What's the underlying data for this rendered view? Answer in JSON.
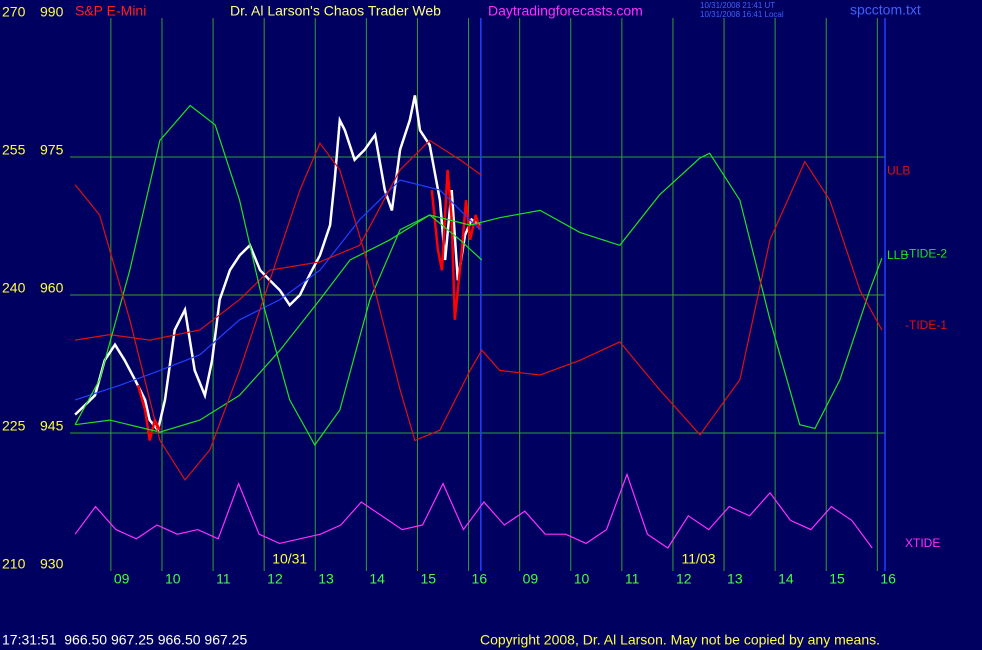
{
  "chart_data": {
    "type": "line",
    "title": "S&P E-Mini",
    "heading": "Dr. Al Larson's Chaos Trader Web",
    "site": "Daytradingforecasts.com",
    "timestamps": [
      "10/31/2008 21:41 UT",
      "10/31/2008 16:41 Local"
    ],
    "file": "spcctom.txt",
    "categories": [
      "09",
      "10",
      "11",
      "12",
      "13",
      "14",
      "15",
      "16",
      "09",
      "10",
      "11",
      "12",
      "13",
      "14",
      "15",
      "16"
    ],
    "date_labels": [
      "10/31",
      "11/03"
    ],
    "xlim": [
      -0.8,
      15.15
    ],
    "ylim": [
      930,
      990
    ],
    "yticks": [
      930,
      945,
      960,
      975,
      990
    ],
    "y2lim": [
      210,
      270
    ],
    "y2ticks": [
      210,
      225,
      240,
      255,
      270
    ],
    "grid": true,
    "now": 7.24,
    "series": [
      {
        "color": "#ffffff",
        "x": [
          -0.7,
          -0.51,
          -0.31,
          -0.12,
          0.08,
          0.27,
          0.47,
          0.67,
          0.76,
          0.92,
          1.06,
          1.25,
          1.45,
          1.64,
          1.84,
          1.98,
          2.13,
          2.33,
          2.52,
          2.72,
          2.92,
          3.11,
          3.31,
          3.5,
          3.7,
          3.89,
          4.09,
          4.29,
          4.38,
          4.48,
          4.58,
          4.77,
          4.97,
          5.17,
          5.36,
          5.5,
          5.66,
          5.85,
          5.95,
          6.05,
          6.24,
          6.44,
          6.54,
          6.67,
          6.79,
          6.93,
          7.06,
          7.22
        ],
        "values": [
          947.0,
          948.0,
          949.1,
          952.9,
          954.6,
          952.9,
          950.8,
          948.6,
          946.4,
          945.3,
          948.6,
          956.2,
          958.4,
          951.8,
          949.1,
          952.9,
          959.5,
          962.7,
          964.3,
          965.4,
          962.7,
          961.6,
          960.5,
          958.9,
          960.0,
          962.2,
          964.3,
          967.6,
          972.5,
          979.0,
          977.9,
          974.7,
          975.8,
          977.4,
          971.4,
          969.2,
          975.8,
          979.0,
          981.7,
          977.9,
          976.3,
          970.3,
          963.8,
          971.4,
          961.6,
          966.5,
          968.2,
          967.6
        ]
      },
      {
        "color": "#ff0000",
        "x": [
          0.53,
          0.67,
          0.76,
          0.86,
          0.96,
          null,
          6.28,
          6.4,
          6.48,
          6.59,
          6.67,
          6.73,
          6.79,
          6.87,
          6.95,
          7.03,
          7.14,
          7.22
        ],
        "values": [
          950.2,
          947.5,
          944.2,
          946.4,
          945.3,
          null,
          971.4,
          964.9,
          962.7,
          973.6,
          968.2,
          957.3,
          960.5,
          964.9,
          970.3,
          966.0,
          968.7,
          967.1
        ]
      },
      {
        "color": "#2040ff",
        "x": [
          -0.7,
          0.18,
          0.96,
          1.74,
          2.52,
          3.31,
          4.09,
          4.87,
          5.66,
          6.44,
          7.22
        ],
        "values": [
          948.6,
          950.2,
          951.8,
          953.5,
          957.3,
          959.5,
          962.7,
          968.2,
          972.5,
          971.4,
          967.1
        ]
      },
      {
        "name": "ULB",
        "color": "#e01010",
        "x": [
          -0.7,
          -0.02,
          0.76,
          1.74,
          2.52,
          3.11,
          4.09,
          4.87,
          5.66,
          6.24,
          6.83,
          7.26
        ],
        "values": [
          955.1,
          955.7,
          955.1,
          956.2,
          959.5,
          962.7,
          963.6,
          965.4,
          973.6,
          976.8,
          974.7,
          973.0
        ]
      },
      {
        "name": "LLB",
        "color": "#20e020",
        "x": [
          -0.7,
          -0.02,
          0.96,
          1.74,
          2.52,
          3.31,
          4.09,
          4.68,
          5.46,
          6.24,
          6.83,
          7.26
        ],
        "values": [
          945.9,
          946.4,
          945.1,
          946.4,
          949.1,
          954.0,
          959.5,
          963.8,
          966.0,
          968.7,
          966.0,
          963.8
        ]
      },
      {
        "name": "-TIDE-2",
        "color": "#20e020",
        "x": [
          -0.7,
          -0.22,
          0.37,
          0.96,
          1.55,
          2.04,
          2.52,
          3.01,
          3.5,
          3.99,
          4.48,
          5.07,
          5.66,
          6.24,
          7.03,
          7.61,
          8.4,
          9.18,
          9.96,
          10.74,
          11.53,
          11.72,
          12.31,
          12.9,
          13.48,
          13.78,
          14.27,
          14.85,
          15.09
        ],
        "values": [
          945.9,
          950.8,
          962.7,
          976.8,
          980.6,
          978.5,
          970.3,
          958.4,
          948.6,
          943.7,
          947.5,
          959.5,
          967.1,
          968.7,
          967.6,
          968.4,
          969.2,
          966.8,
          965.4,
          970.9,
          974.9,
          975.4,
          970.3,
          957.3,
          945.9,
          945.5,
          950.8,
          960.5,
          964.0
        ]
      },
      {
        "name": "-TIDE-1",
        "color": "#e01010",
        "x": [
          -0.7,
          -0.22,
          0.37,
          0.96,
          1.45,
          1.94,
          2.52,
          3.11,
          3.7,
          4.09,
          4.48,
          5.07,
          5.66,
          5.95,
          6.44,
          7.03,
          7.26,
          7.61,
          8.4,
          9.18,
          9.96,
          10.74,
          11.53,
          12.31,
          12.9,
          13.58,
          14.07,
          14.66,
          15.09
        ],
        "values": [
          972.0,
          968.7,
          957.3,
          944.2,
          939.9,
          943.2,
          951.8,
          961.6,
          971.4,
          976.5,
          973.6,
          962.7,
          949.7,
          944.2,
          945.3,
          951.8,
          954.0,
          951.8,
          951.3,
          952.9,
          954.9,
          949.7,
          944.8,
          950.8,
          966.0,
          974.5,
          970.3,
          960.5,
          956.2
        ]
      },
      {
        "name": "XTIDE",
        "color": "#ff30ff",
        "x": [
          -0.7,
          -0.3,
          0.1,
          0.5,
          0.9,
          1.3,
          1.7,
          2.1,
          2.5,
          2.9,
          3.3,
          3.7,
          4.1,
          4.5,
          4.9,
          5.3,
          5.7,
          6.1,
          6.5,
          6.9,
          7.3,
          7.7,
          8.1,
          8.5,
          8.9,
          9.3,
          9.7,
          10.1,
          10.5,
          10.9,
          11.3,
          11.7,
          12.1,
          12.5,
          12.9,
          13.3,
          13.7,
          14.1,
          14.5,
          14.9
        ],
        "values": [
          934.0,
          937.0,
          934.5,
          933.5,
          935.0,
          934.0,
          934.5,
          933.5,
          939.5,
          934.0,
          933.0,
          933.5,
          934.0,
          935.0,
          937.5,
          936.0,
          934.5,
          935.0,
          939.5,
          934.5,
          937.5,
          935.0,
          936.5,
          934.0,
          934.0,
          933.0,
          934.5,
          940.5,
          934.0,
          932.5,
          936.0,
          934.5,
          937.0,
          936.0,
          938.5,
          935.5,
          934.5,
          937.0,
          935.5,
          932.5
        ]
      }
    ],
    "status": "17:31:51  966.50 967.25 966.50 967.25",
    "copyright": "Copyright 2008, Dr. Al Larson. May not be copied by any means."
  }
}
